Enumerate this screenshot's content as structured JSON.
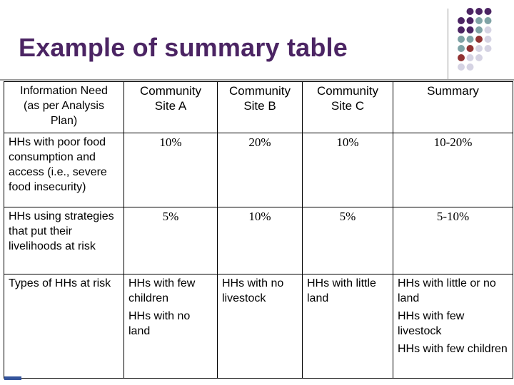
{
  "slide": {
    "title": "Example of summary table"
  },
  "table": {
    "header": {
      "need": [
        "Information Need",
        "(as per Analysis",
        "Plan)"
      ],
      "site_a": [
        "Community",
        "Site A"
      ],
      "site_b": [
        "Community",
        "Site B"
      ],
      "site_c": [
        "Community",
        "Site C"
      ],
      "summary": "Summary"
    },
    "rows": [
      {
        "label": "HHs with poor food consumption and access (i.e., severe food insecurity)",
        "site_a": "10%",
        "site_b": "20%",
        "site_c": "10%",
        "summary": "10-20%"
      },
      {
        "label": "HHs using strategies that put their livelihoods at risk",
        "site_a": "5%",
        "site_b": "10%",
        "site_c": "5%",
        "summary": "5-10%"
      },
      {
        "label": "Types of HHs at risk",
        "site_a": [
          "HHs with few children",
          "HHs with no land"
        ],
        "site_b": [
          "HHs with no livestock"
        ],
        "site_c": [
          "HHs with little land"
        ],
        "summary": [
          "HHs with little or no land",
          "HHs with few livestock",
          "HHs with few children"
        ]
      }
    ]
  },
  "decor": {
    "dot_colors": {
      "purple": "#4b2463",
      "teal": "#7fa3a6",
      "red": "#923333",
      "light": "#d5d3e3"
    }
  }
}
